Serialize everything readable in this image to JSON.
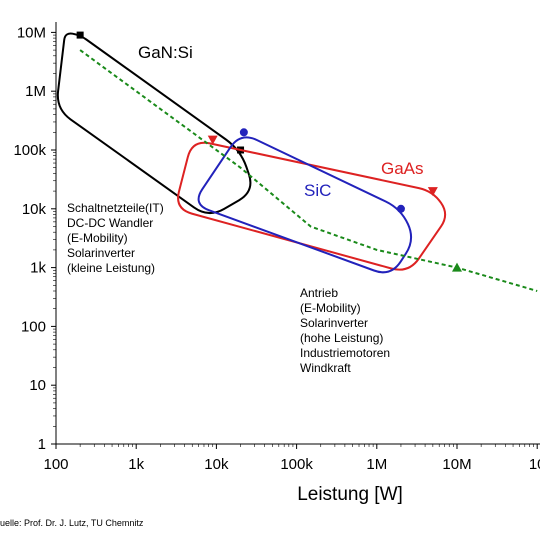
{
  "chart_data": {
    "type": "area",
    "xlabel": "Leistung [W]",
    "x_ticks": [
      "100",
      "1k",
      "10k",
      "100k",
      "1M",
      "10M",
      "10"
    ],
    "y_ticks": [
      "1",
      "10",
      "100",
      "1k",
      "10k",
      "100k",
      "1M",
      "10M"
    ],
    "x_scale": "log",
    "y_scale": "log",
    "xlim": [
      100,
      100000000
    ],
    "ylim": [
      1,
      10000000
    ],
    "grid": false,
    "regions": [
      {
        "name": "GaN:Si",
        "color": "#000000",
        "points": [
          [
            130,
            10000000
          ],
          [
            200,
            9000000
          ],
          [
            20000,
            100000
          ],
          [
            30000,
            20000
          ],
          [
            8000,
            7000
          ],
          [
            100,
            500000
          ]
        ],
        "markers": [
          [
            200,
            9000000
          ],
          [
            20000,
            100000
          ]
        ]
      },
      {
        "name": "GaAs",
        "color": "#dd2222",
        "points": [
          [
            5000,
            150000
          ],
          [
            5000000,
            20000
          ],
          [
            8000000,
            8000
          ],
          [
            2500000,
            800
          ],
          [
            3000,
            10000
          ]
        ],
        "markers": [
          [
            9000,
            150000
          ],
          [
            5000000,
            20000
          ]
        ]
      },
      {
        "name": "SiC",
        "color": "#2222bb",
        "points": [
          [
            20000,
            200000
          ],
          [
            2000000,
            10000
          ],
          [
            3000000,
            3000
          ],
          [
            1500000,
            700
          ],
          [
            5000,
            12000
          ]
        ],
        "markers": [
          [
            22000,
            200000
          ],
          [
            2000000,
            10000
          ]
        ]
      }
    ],
    "trend_line": {
      "color": "#1a8a1a",
      "points": [
        [
          200,
          5000000
        ],
        [
          20000,
          50000
        ],
        [
          150000,
          5000
        ],
        [
          1000000,
          2000
        ],
        [
          10000000,
          1000
        ],
        [
          100000000,
          400
        ]
      ],
      "marker": [
        10000000,
        1000
      ]
    },
    "annotations": [
      [
        "Schaltnetzteile(IT)",
        "DC-DC Wandler",
        "(E-Mobility)",
        "Solarinverter",
        "(kleine Leistung)"
      ],
      [
        "Antrieb",
        "(E-Mobility)",
        "Solarinverter",
        "(hohe Leistung)",
        "Industriemotoren",
        "Windkraft"
      ]
    ]
  },
  "source_text": "uelle: Prof. Dr. J. Lutz, TU Chemnitz"
}
